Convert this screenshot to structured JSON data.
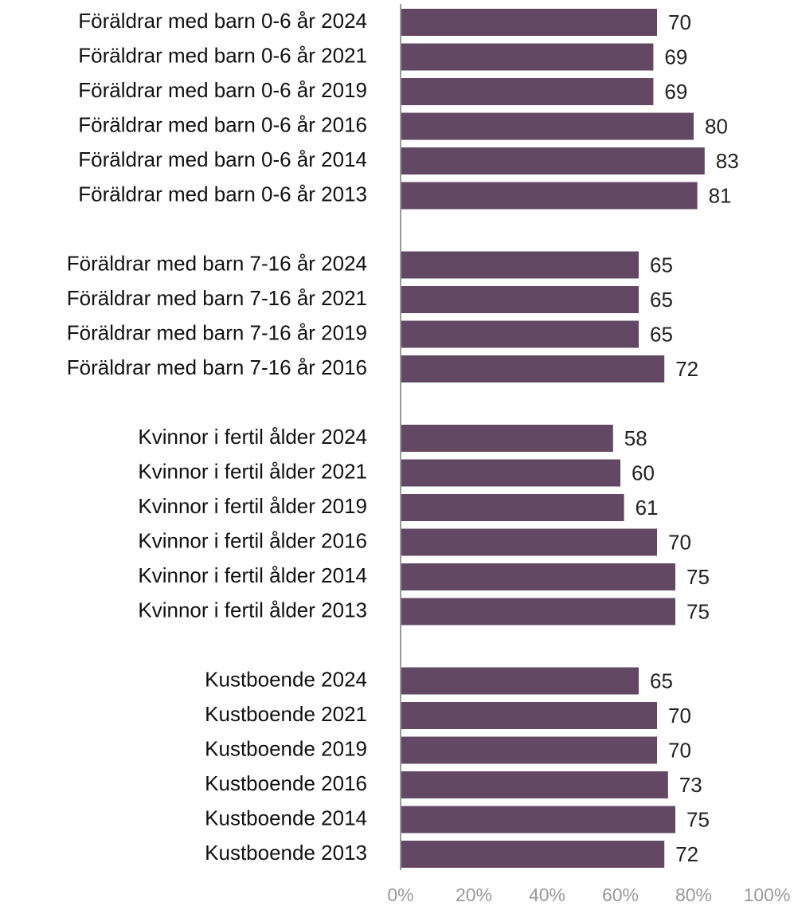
{
  "chart_data": {
    "type": "hbar",
    "categories": [
      "Föräldrar med barn 0-6 år 2024",
      "Föräldrar med barn 0-6 år 2021",
      "Föräldrar med barn 0-6 år 2019",
      "Föräldrar med barn 0-6 år 2016",
      "Föräldrar med barn 0-6 år 2014",
      "Föräldrar med barn 0-6 år 2013",
      null,
      "Föräldrar med barn 7-16 år 2024",
      "Föräldrar med barn 7-16 år 2021",
      "Föräldrar med barn 7-16 år 2019",
      "Föräldrar med barn 7-16 år 2016",
      null,
      "Kvinnor i fertil ålder 2024",
      "Kvinnor i fertil ålder 2021",
      "Kvinnor i fertil ålder 2019",
      "Kvinnor i fertil ålder 2016",
      "Kvinnor i fertil ålder 2014",
      "Kvinnor i fertil ålder 2013",
      null,
      "Kustboende 2024",
      "Kustboende 2021",
      "Kustboende 2019",
      "Kustboende 2016",
      "Kustboende 2014",
      "Kustboende 2013"
    ],
    "values": [
      70,
      69,
      69,
      80,
      83,
      81,
      null,
      65,
      65,
      65,
      72,
      null,
      58,
      60,
      61,
      70,
      75,
      75,
      null,
      65,
      70,
      70,
      73,
      75,
      72
    ],
    "color": "#634863",
    "xlim": [
      0,
      100
    ],
    "xticks": [
      {
        "value": 0,
        "label": "0%"
      },
      {
        "value": 20,
        "label": "20%"
      },
      {
        "value": 40,
        "label": "40%"
      },
      {
        "value": 60,
        "label": "60%"
      },
      {
        "value": 80,
        "label": "80%"
      },
      {
        "value": 100,
        "label": "100%"
      }
    ]
  }
}
